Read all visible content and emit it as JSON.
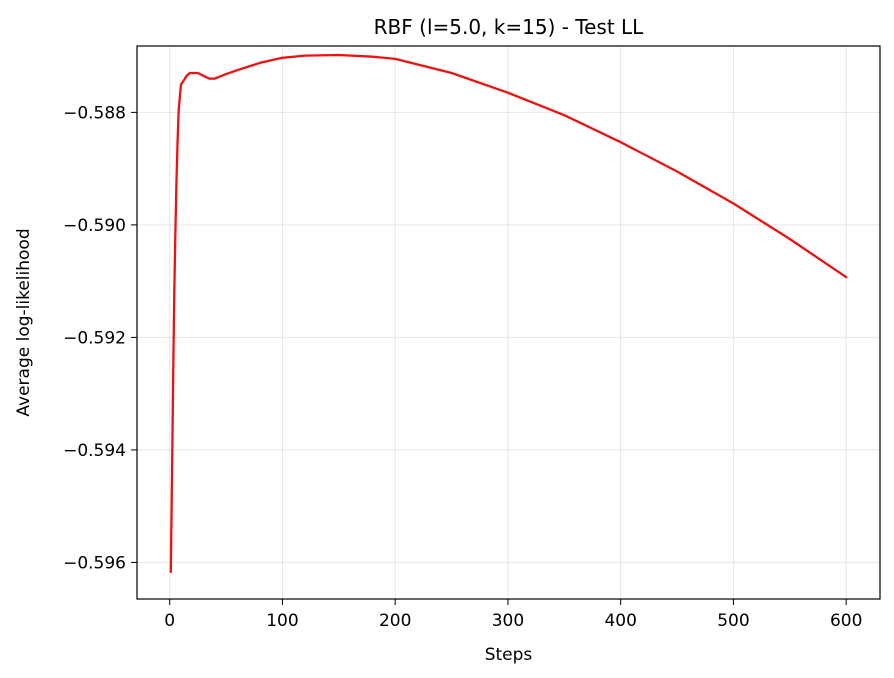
{
  "chart_data": {
    "type": "line",
    "title": "RBF (l=5.0, k=15) - Test LL",
    "xlabel": "Steps",
    "ylabel": "Average log-likelihood",
    "xlim": [
      -29,
      630
    ],
    "ylim": [
      -0.59665,
      -0.58682
    ],
    "grid": true,
    "xticks": [
      0,
      100,
      200,
      300,
      400,
      500,
      600
    ],
    "xtick_labels": [
      "0",
      "100",
      "200",
      "300",
      "400",
      "500",
      "600"
    ],
    "yticks": [
      -0.588,
      -0.59,
      -0.592,
      -0.594,
      -0.596
    ],
    "ytick_labels": [
      "−0.588",
      "−0.590",
      "−0.592",
      "−0.594",
      "−0.596"
    ],
    "series": [
      {
        "color": "#ee1111",
        "x": [
          1,
          2,
          3,
          4,
          5,
          6,
          7,
          8,
          10,
          12,
          15,
          18,
          21,
          25,
          30,
          35,
          40,
          50,
          60,
          80,
          100,
          120,
          150,
          180,
          200,
          250,
          300,
          350,
          400,
          450,
          500,
          550,
          600
        ],
        "y": [
          -0.59617,
          -0.5945,
          -0.5928,
          -0.5913,
          -0.5902,
          -0.5892,
          -0.5885,
          -0.58795,
          -0.5875,
          -0.58745,
          -0.58735,
          -0.5873,
          -0.5873,
          -0.5873,
          -0.58735,
          -0.5874,
          -0.5874,
          -0.58732,
          -0.58725,
          -0.58712,
          -0.58703,
          -0.58699,
          -0.58698,
          -0.58701,
          -0.58705,
          -0.5873,
          -0.58765,
          -0.58805,
          -0.58853,
          -0.58905,
          -0.58962,
          -0.59025,
          -0.59093
        ]
      }
    ]
  }
}
